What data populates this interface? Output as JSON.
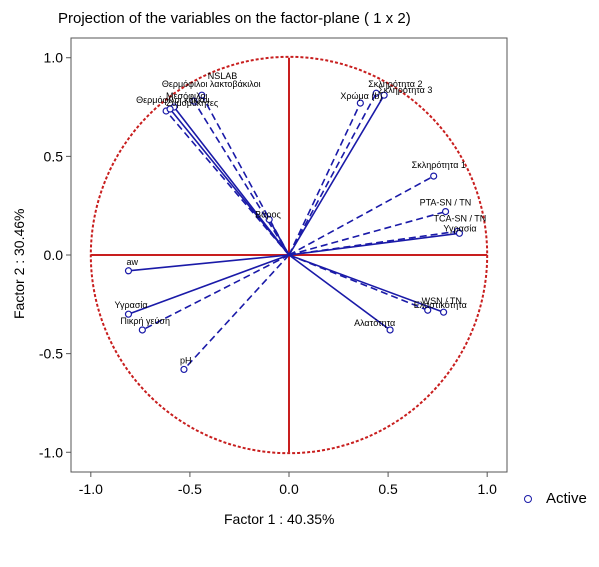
{
  "chart_data": {
    "type": "scatter",
    "title": "Projection of the variables on the factor-plane (  1 x   2)",
    "xlabel": "Factor 1 : 40.35%",
    "ylabel": "Factor 2 : 30.46%",
    "xlim": [
      -1.1,
      1.1
    ],
    "ylim": [
      -1.1,
      1.1
    ],
    "xticks": [
      "-1.0",
      "-0.5",
      "0.0",
      "0.5",
      "1.0"
    ],
    "yticks": [
      "1.0",
      "0.5",
      "0.0",
      "-0.5",
      "-1.0"
    ],
    "grid": false,
    "unit_circle": true,
    "colors": {
      "vectors": "#1a1aa8",
      "circle": "#c81e1e",
      "axes": "#c81e1e"
    },
    "legend": {
      "position": "bottom-right",
      "entries": [
        "Active"
      ]
    },
    "variables": [
      {
        "label": "NSLAB",
        "x": -0.44,
        "y": 0.81,
        "dashed": true,
        "anchor": "start",
        "dx": 6,
        "dy": -16
      },
      {
        "label": "Θερμόφιλοι λακτοβάκιλοι",
        "x": -0.48,
        "y": 0.78,
        "dashed": true,
        "anchor": "start",
        "dx": -32,
        "dy": -14
      },
      {
        "label": "Θερμόφιλοι κόκκοι",
        "x": -0.62,
        "y": 0.73,
        "dashed": true,
        "anchor": "start",
        "dx": -30,
        "dy": -8
      },
      {
        "label": "Μεσόφιλοι",
        "x": -0.58,
        "y": 0.75,
        "dashed": false,
        "anchor": "start",
        "dx": -8,
        "dy": -8
      },
      {
        "label": "Ζυμομύκητες",
        "x": -0.6,
        "y": 0.74,
        "dashed": false,
        "anchor": "start",
        "dx": -4,
        "dy": -3
      },
      {
        "label": "Σκληρότητα 2",
        "x": 0.44,
        "y": 0.82,
        "dashed": true,
        "anchor": "start",
        "dx": -8,
        "dy": -6
      },
      {
        "label": "Σκληρότητα 3",
        "x": 0.48,
        "y": 0.81,
        "dashed": false,
        "anchor": "start",
        "dx": -6,
        "dy": -2
      },
      {
        "label": "Χρώμα (b)",
        "x": 0.36,
        "y": 0.77,
        "dashed": true,
        "anchor": "start",
        "dx": -20,
        "dy": -4
      },
      {
        "label": "Σκληρότητα 1",
        "x": 0.73,
        "y": 0.4,
        "dashed": true,
        "anchor": "start",
        "dx": -22,
        "dy": -8
      },
      {
        "label": "PTA-SN / TN",
        "x": 0.79,
        "y": 0.22,
        "dashed": true,
        "anchor": "start",
        "dx": -26,
        "dy": -6
      },
      {
        "label": "TCA-SN / TN",
        "x": 0.85,
        "y": 0.12,
        "dashed": true,
        "anchor": "start",
        "dx": -24,
        "dy": -10
      },
      {
        "label": "Υγρασία",
        "x": 0.86,
        "y": 0.11,
        "dashed": false,
        "anchor": "start",
        "dx": -16,
        "dy": -2
      },
      {
        "label": "WSN / TN",
        "x": 0.78,
        "y": -0.29,
        "dashed": false,
        "anchor": "start",
        "dx": -22,
        "dy": -8
      },
      {
        "label": "Ελαστικότητα",
        "x": 0.7,
        "y": -0.28,
        "dashed": true,
        "anchor": "start",
        "dx": -14,
        "dy": -2
      },
      {
        "label": "Αλατότητα",
        "x": 0.51,
        "y": -0.38,
        "dashed": false,
        "anchor": "start",
        "dx": -36,
        "dy": -4
      },
      {
        "label": "aw",
        "x": -0.81,
        "y": -0.08,
        "dashed": false,
        "anchor": "start",
        "dx": -2,
        "dy": -6
      },
      {
        "label": "Υγρασία",
        "x": -0.81,
        "y": -0.3,
        "dashed": false,
        "anchor": "start",
        "dx": -14,
        "dy": -6
      },
      {
        "label": "Πικρή γεύση",
        "x": -0.74,
        "y": -0.38,
        "dashed": true,
        "anchor": "start",
        "dx": -22,
        "dy": -6
      },
      {
        "label": "pH",
        "x": -0.53,
        "y": -0.58,
        "dashed": true,
        "anchor": "start",
        "dx": -4,
        "dy": -6
      },
      {
        "label": "Βάρος",
        "x": -0.1,
        "y": 0.18,
        "dashed": false,
        "anchor": "start",
        "dx": -14,
        "dy": -2
      }
    ]
  }
}
